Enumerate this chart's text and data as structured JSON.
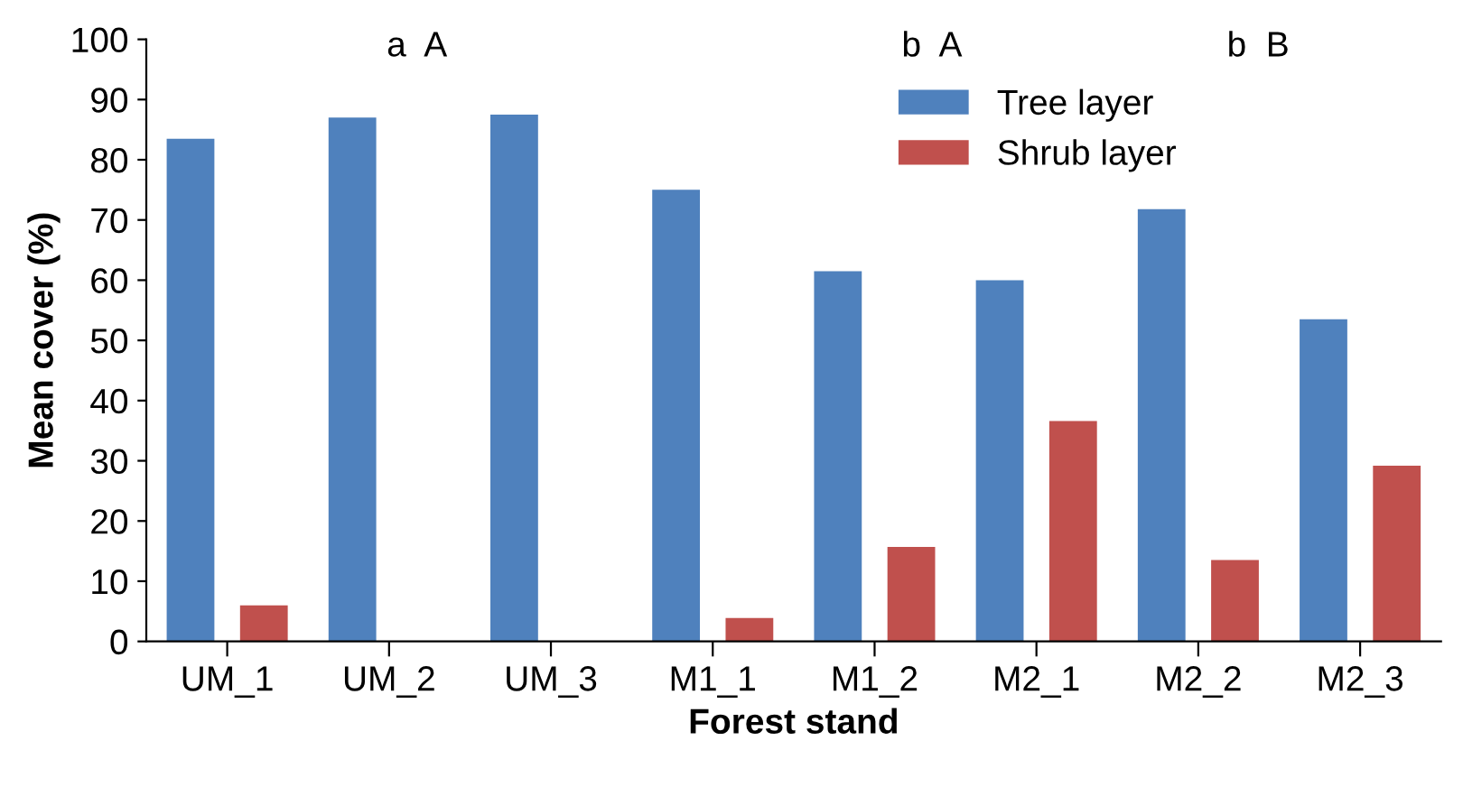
{
  "chart_data": {
    "type": "bar",
    "xlabel": "Forest stand",
    "ylabel": "Mean cover (%)",
    "categories": [
      "UM_1",
      "UM_2",
      "UM_3",
      "M1_1",
      "M1_2",
      "M2_1",
      "M2_2",
      "M2_3"
    ],
    "series": [
      {
        "name": "Tree layer",
        "color": "#4f81bd",
        "values": [
          83.5,
          87,
          87.5,
          75,
          61.5,
          60,
          71.8,
          53.5
        ]
      },
      {
        "name": "Shrub layer",
        "color": "#c0504d",
        "values": [
          6,
          0,
          0,
          3.9,
          15.7,
          36.6,
          13.5,
          29.2
        ]
      }
    ],
    "ylim": [
      0,
      100
    ],
    "yticks": [
      0,
      10,
      20,
      30,
      40,
      50,
      60,
      70,
      80,
      90,
      100
    ],
    "grid": false,
    "legend": "top right",
    "annotations": [
      "a  A",
      "b  A",
      "b  B"
    ]
  }
}
